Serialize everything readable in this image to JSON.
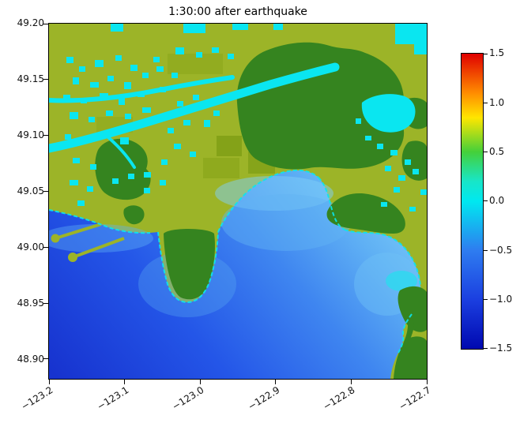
{
  "chart_data": {
    "type": "heatmap",
    "title": "1:30:00 after earthquake",
    "xlabel": "",
    "ylabel": "",
    "x_range": [
      -123.2,
      -122.7
    ],
    "y_range": [
      48.88,
      49.2
    ],
    "x_tick_labels": [
      "−123.2",
      "−123.1",
      "−123.0",
      "−122.9",
      "−122.8",
      "−122.7"
    ],
    "y_tick_labels": [
      "49.20",
      "49.15",
      "49.10",
      "49.05",
      "49.00",
      "48.95",
      "48.90"
    ],
    "grid": false,
    "legend": "none",
    "colorbar": {
      "position": "right",
      "min": -1.5,
      "max": 1.5,
      "tick_labels": [
        "1.5",
        "1.0",
        "0.5",
        "0.0",
        "−0.5",
        "−1.0",
        "−1.5"
      ],
      "gradient_stops": [
        {
          "value": 1.5,
          "color": "#e00000"
        },
        {
          "value": 1.1,
          "color": "#ff8c00"
        },
        {
          "value": 0.85,
          "color": "#ffe600"
        },
        {
          "value": 0.5,
          "color": "#44d03a"
        },
        {
          "value": 0.2,
          "color": "#18e6c8"
        },
        {
          "value": 0.0,
          "color": "#00e8f0"
        },
        {
          "value": -0.5,
          "color": "#2e7cf0"
        },
        {
          "value": -1.0,
          "color": "#1b3fe0"
        },
        {
          "value": -1.5,
          "color": "#0008b0"
        }
      ]
    },
    "palette": {
      "land_lowland": "#9cb428",
      "land_upland": "#35841f",
      "flood_zero_cyan": "#0ae6f0",
      "sea_deep": "#1733cf",
      "sea_shallow": "#79c8f8",
      "background": "#ffffff",
      "axis_color": "#000000"
    }
  }
}
